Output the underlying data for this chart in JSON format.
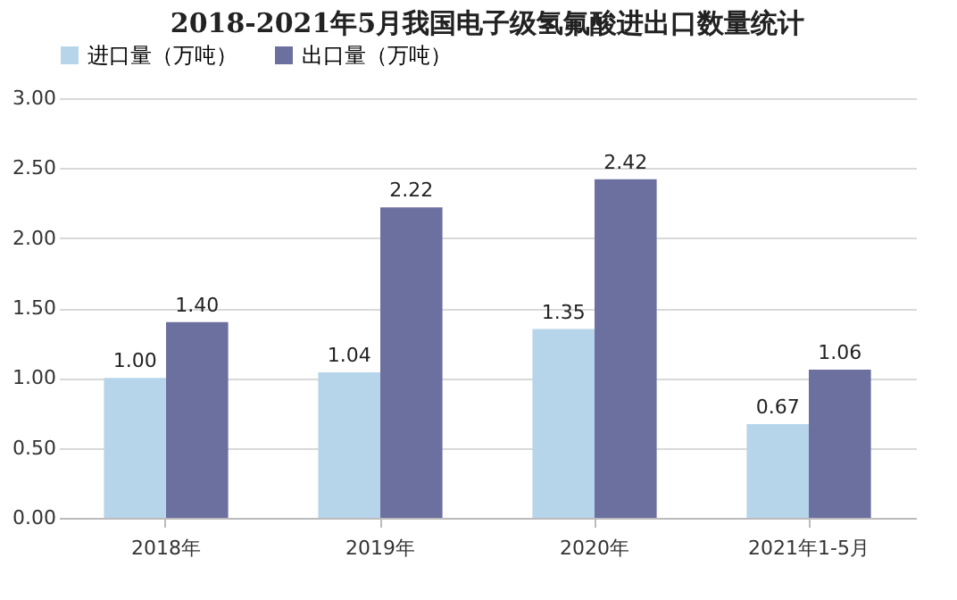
{
  "chart_data": {
    "type": "bar",
    "title": "2018-2021年5月我国电子级氢氟酸进出口数量统计",
    "categories": [
      "2018年",
      "2019年",
      "2020年",
      "2021年1-5月"
    ],
    "series": [
      {
        "name": "进口量（万吨）",
        "color": "#b7d5ea",
        "values": [
          1.0,
          1.04,
          1.35,
          0.67
        ],
        "value_labels": [
          "1.00",
          "1.04",
          "1.35",
          "0.67"
        ]
      },
      {
        "name": "出口量（万吨）",
        "color": "#6c709f",
        "values": [
          1.4,
          2.22,
          2.42,
          1.06
        ],
        "value_labels": [
          "1.40",
          "2.22",
          "2.42",
          "1.06"
        ]
      }
    ],
    "ylim": [
      0,
      3
    ],
    "yticks": [
      {
        "value": 0,
        "label": "0.00"
      },
      {
        "value": 0.5,
        "label": "0.50"
      },
      {
        "value": 1,
        "label": "1.00"
      },
      {
        "value": 1.5,
        "label": "1.50"
      },
      {
        "value": 2,
        "label": "2.00"
      },
      {
        "value": 2.5,
        "label": "2.50"
      },
      {
        "value": 3,
        "label": "3.00"
      }
    ],
    "grid": "y",
    "legend": "top"
  }
}
